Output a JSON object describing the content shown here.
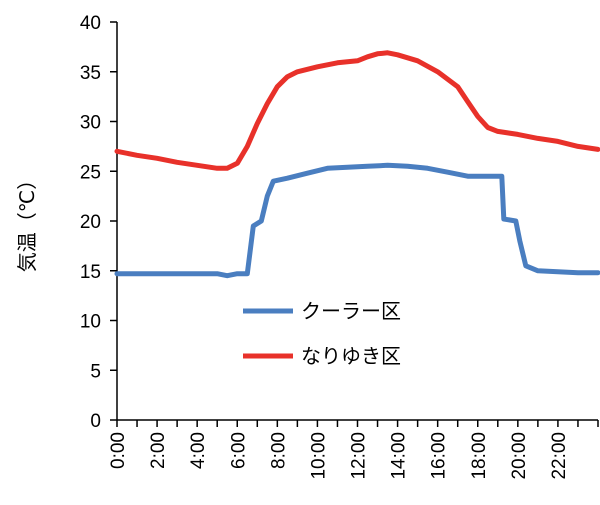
{
  "chart_data": {
    "type": "line",
    "title": "",
    "xlabel": "",
    "ylabel": "気温（℃）",
    "xlim": [
      0,
      24
    ],
    "ylim": [
      0,
      40
    ],
    "yticks": [
      0,
      5,
      10,
      15,
      20,
      25,
      30,
      35,
      40
    ],
    "xtick_labels": [
      "0:00",
      "2:00",
      "4:00",
      "6:00",
      "8:00",
      "10:00",
      "12:00",
      "14:00",
      "16:00",
      "18:00",
      "20:00",
      "22:00"
    ],
    "grid": false,
    "legend_position": "center",
    "series": [
      {
        "name": "クーラー区",
        "color": "#4a7ec0",
        "points": [
          [
            0.0,
            14.7
          ],
          [
            1.0,
            14.7
          ],
          [
            2.0,
            14.7
          ],
          [
            3.0,
            14.7
          ],
          [
            4.0,
            14.7
          ],
          [
            5.0,
            14.7
          ],
          [
            5.5,
            14.5
          ],
          [
            6.0,
            14.7
          ],
          [
            6.5,
            14.7
          ],
          [
            6.8,
            19.5
          ],
          [
            7.2,
            20.0
          ],
          [
            7.5,
            22.5
          ],
          [
            7.8,
            24.0
          ],
          [
            8.5,
            24.3
          ],
          [
            9.5,
            24.8
          ],
          [
            10.5,
            25.3
          ],
          [
            11.5,
            25.4
          ],
          [
            12.5,
            25.5
          ],
          [
            13.5,
            25.6
          ],
          [
            14.5,
            25.5
          ],
          [
            15.5,
            25.3
          ],
          [
            16.5,
            24.9
          ],
          [
            17.5,
            24.5
          ],
          [
            18.5,
            24.5
          ],
          [
            19.2,
            24.5
          ],
          [
            19.3,
            20.2
          ],
          [
            19.9,
            20.0
          ],
          [
            20.1,
            18.0
          ],
          [
            20.4,
            15.5
          ],
          [
            21.0,
            15.0
          ],
          [
            22.0,
            14.9
          ],
          [
            23.0,
            14.8
          ],
          [
            24.0,
            14.8
          ]
        ]
      },
      {
        "name": "なりゆき区",
        "color": "#e8312a",
        "points": [
          [
            0.0,
            27.0
          ],
          [
            1.0,
            26.6
          ],
          [
            2.0,
            26.3
          ],
          [
            3.0,
            25.9
          ],
          [
            4.0,
            25.6
          ],
          [
            5.0,
            25.3
          ],
          [
            5.5,
            25.3
          ],
          [
            6.0,
            25.8
          ],
          [
            6.5,
            27.5
          ],
          [
            7.0,
            29.8
          ],
          [
            7.5,
            31.8
          ],
          [
            8.0,
            33.5
          ],
          [
            8.5,
            34.5
          ],
          [
            9.0,
            35.0
          ],
          [
            10.0,
            35.5
          ],
          [
            11.0,
            35.9
          ],
          [
            12.0,
            36.1
          ],
          [
            12.5,
            36.5
          ],
          [
            13.0,
            36.8
          ],
          [
            13.5,
            36.9
          ],
          [
            14.0,
            36.7
          ],
          [
            15.0,
            36.1
          ],
          [
            16.0,
            35.0
          ],
          [
            17.0,
            33.5
          ],
          [
            17.5,
            32.0
          ],
          [
            18.0,
            30.5
          ],
          [
            18.5,
            29.4
          ],
          [
            19.0,
            29.0
          ],
          [
            20.0,
            28.7
          ],
          [
            21.0,
            28.3
          ],
          [
            22.0,
            28.0
          ],
          [
            23.0,
            27.5
          ],
          [
            24.0,
            27.2
          ]
        ]
      }
    ]
  }
}
